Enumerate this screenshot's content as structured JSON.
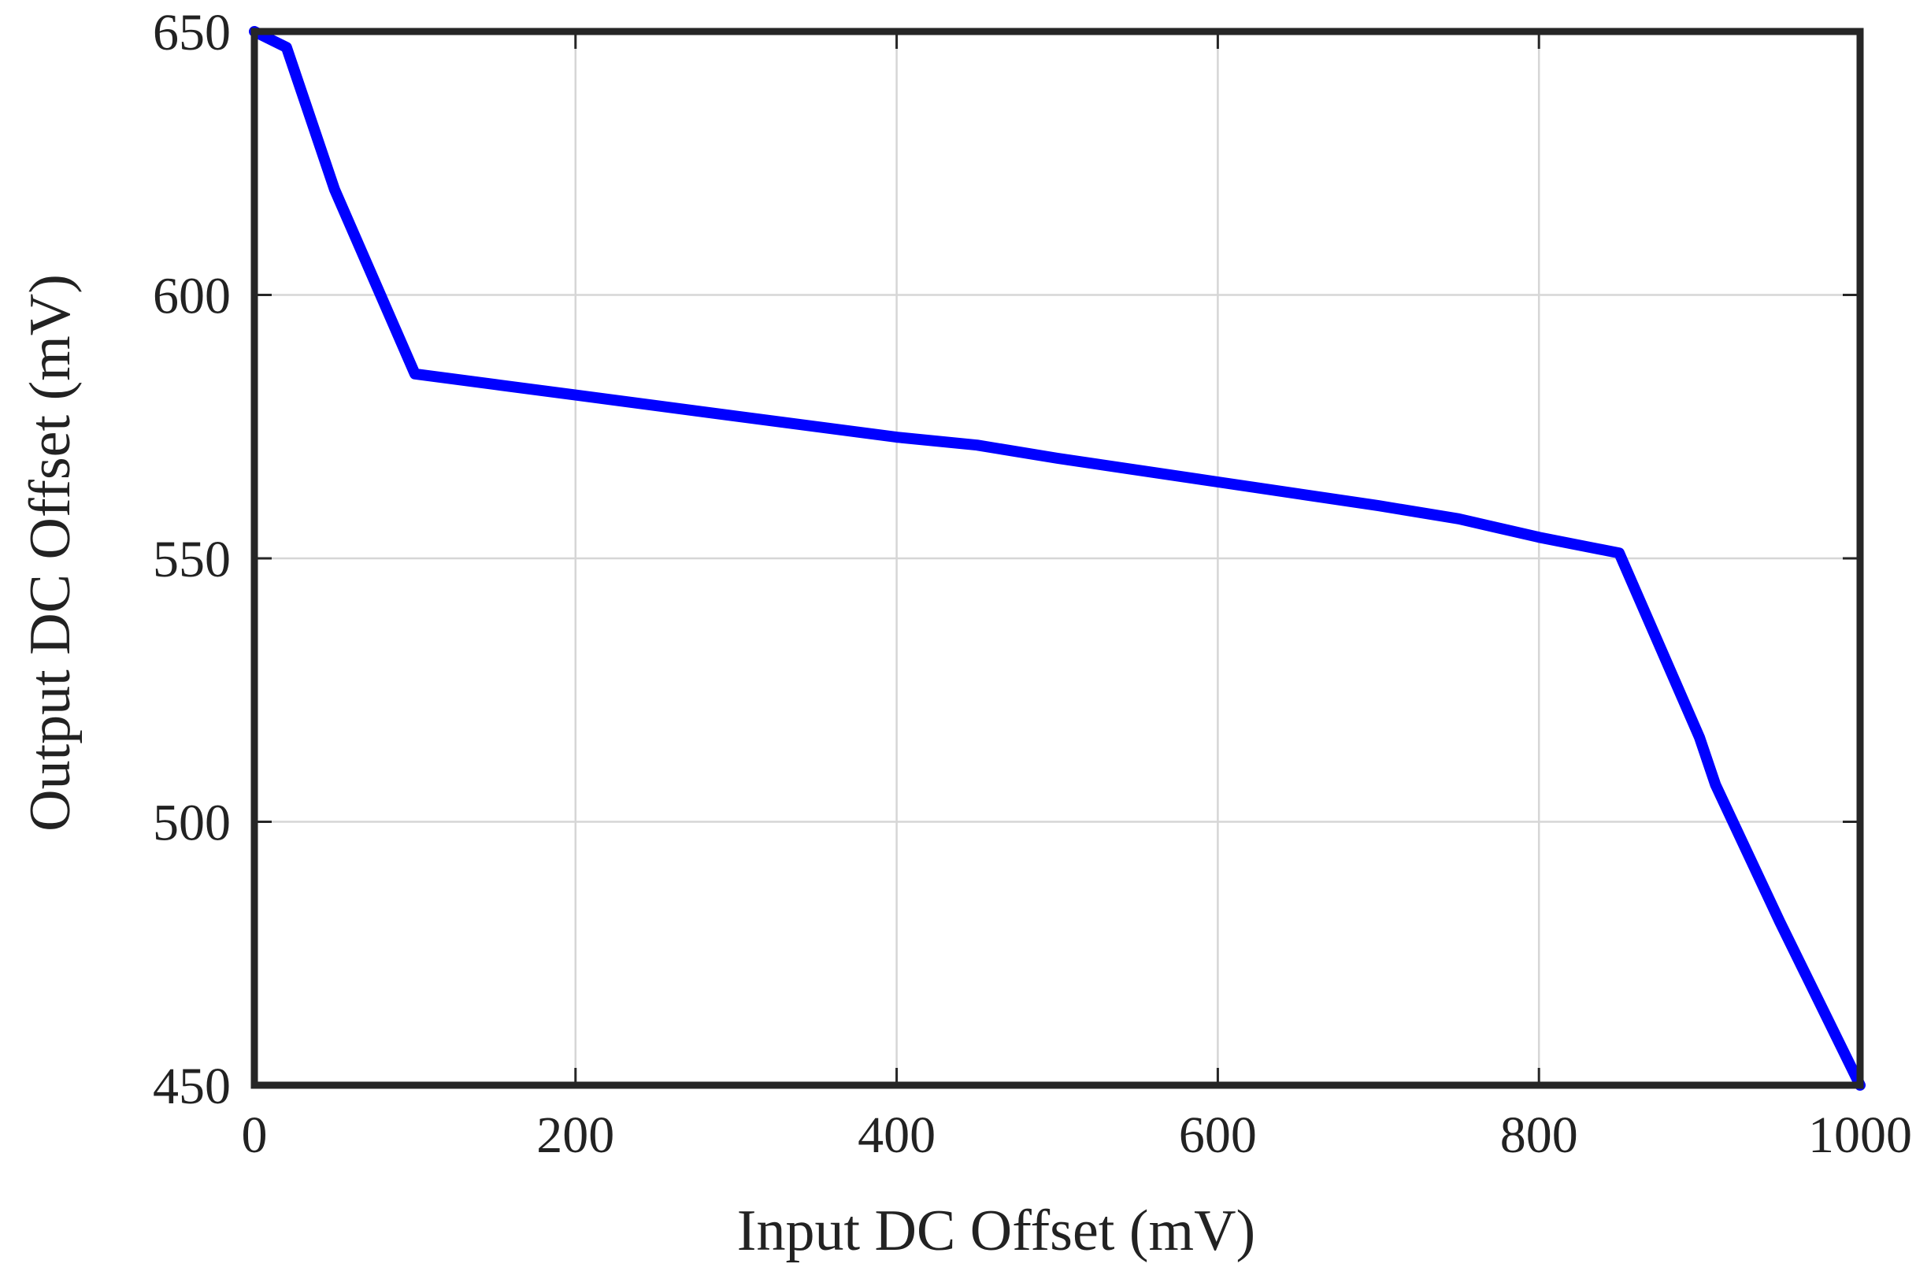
{
  "chart_data": {
    "type": "line",
    "title": "",
    "xlabel": "Input DC Offset (mV)",
    "ylabel": "Output DC Offset (mV)",
    "xlim": [
      0,
      1000
    ],
    "ylim": [
      450,
      650
    ],
    "grid": true,
    "xticks": [
      0,
      200,
      400,
      600,
      800,
      1000
    ],
    "xtick_labels": [
      "0",
      "200",
      "400",
      "600",
      "800",
      "1000"
    ],
    "yticks": [
      450,
      500,
      550,
      600,
      650
    ],
    "ytick_labels": [
      "450",
      "500",
      "550",
      "600",
      "650"
    ],
    "series": [
      {
        "name": "Output DC Offset",
        "color": "#0000ff",
        "x": [
          0,
          20,
          50,
          100,
          150,
          200,
          300,
          400,
          450,
          500,
          600,
          700,
          750,
          800,
          850,
          900,
          910,
          950,
          1000
        ],
        "y": [
          650,
          647,
          620,
          585,
          583,
          581,
          577,
          573,
          571.5,
          569,
          564.5,
          560,
          557.5,
          554,
          551,
          516,
          507,
          481,
          450
        ]
      }
    ]
  }
}
